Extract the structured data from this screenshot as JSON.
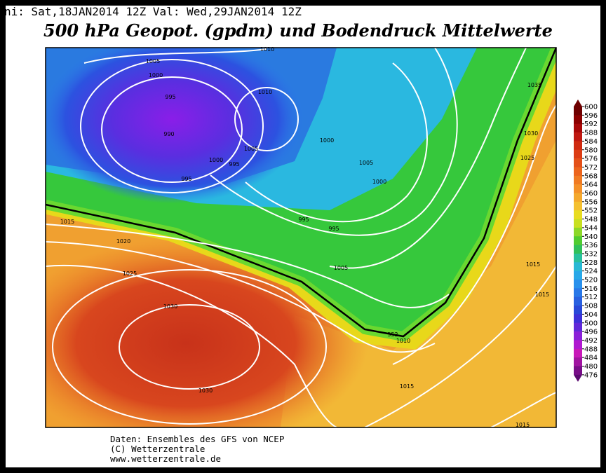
{
  "header": {
    "init": "ni: Sat,18JAN2014 12Z  Val: Wed,29JAN2014 12Z",
    "title": "500 hPa Geopot. (gpdm) und Bodendruck Mittelwerte"
  },
  "map": {
    "isobar_labels": [
      "1005",
      "1000",
      "995",
      "990",
      "995",
      "1000",
      "995",
      "1005",
      "1010",
      "1000",
      "1005",
      "1000",
      "995",
      "995",
      "1005",
      "1015",
      "1020",
      "1025",
      "1030",
      "1030",
      "1010",
      "1015",
      "1015",
      "1015",
      "1015",
      "1025",
      "1030",
      "1035",
      "1010",
      "552"
    ]
  },
  "colorbar": {
    "labels": [
      "600",
      "596",
      "592",
      "588",
      "584",
      "580",
      "576",
      "572",
      "568",
      "564",
      "560",
      "556",
      "552",
      "548",
      "544",
      "540",
      "536",
      "532",
      "528",
      "524",
      "520",
      "516",
      "512",
      "508",
      "504",
      "500",
      "496",
      "492",
      "488",
      "484",
      "480",
      "476"
    ]
  },
  "footer": {
    "lines": [
      "Daten: Ensembles des GFS von NCEP",
      "(C) Wetterzentrale",
      "www.wetterzentrale.de"
    ]
  }
}
